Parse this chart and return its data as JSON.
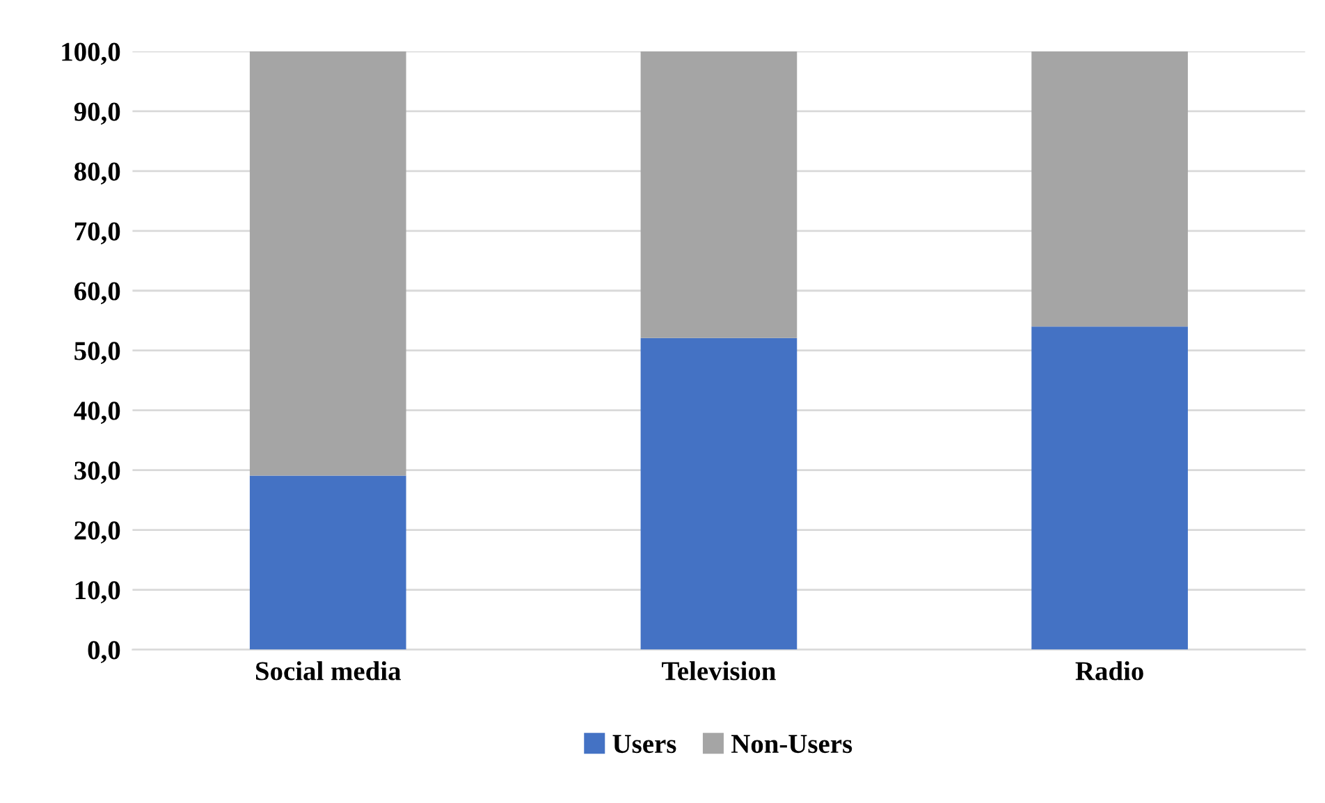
{
  "chart_data": {
    "type": "bar",
    "stacked": true,
    "categories": [
      "Social media",
      "Television",
      "Radio"
    ],
    "series": [
      {
        "name": "Users",
        "color": "#4472c4",
        "values": [
          29.1,
          52.1,
          54.0
        ]
      },
      {
        "name": "Non-Users",
        "color": "#a5a5a5",
        "values": [
          70.9,
          47.9,
          46.0
        ]
      }
    ],
    "ylim": [
      0,
      100
    ],
    "yticks": [
      {
        "value": 0,
        "label": "0,0"
      },
      {
        "value": 10,
        "label": "10,0"
      },
      {
        "value": 20,
        "label": "20,0"
      },
      {
        "value": 30,
        "label": "30,0"
      },
      {
        "value": 40,
        "label": "40,0"
      },
      {
        "value": 50,
        "label": "50,0"
      },
      {
        "value": 60,
        "label": "60,0"
      },
      {
        "value": 70,
        "label": "70,0"
      },
      {
        "value": 80,
        "label": "80,0"
      },
      {
        "value": 90,
        "label": "90,0"
      },
      {
        "value": 100,
        "label": "100,0"
      }
    ],
    "grid": "y",
    "legend": "bottom"
  }
}
